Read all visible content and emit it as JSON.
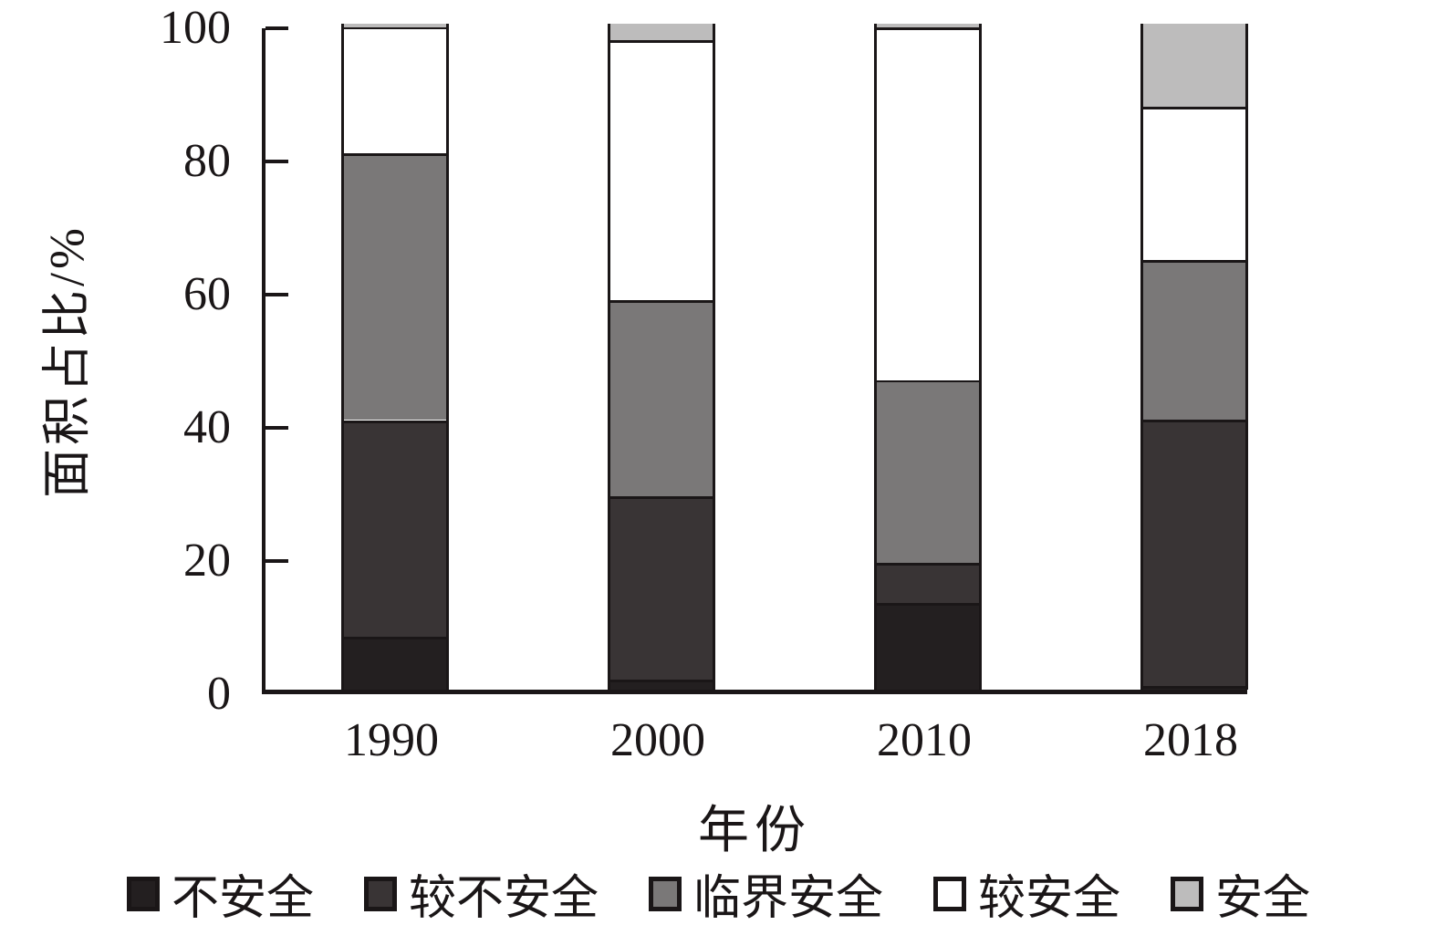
{
  "figure": {
    "background": "#ffffff",
    "outline_color": "#1a1617"
  },
  "chart_data": {
    "type": "bar",
    "subtype": "stacked-vertical",
    "title": "",
    "xlabel": "年份",
    "ylabel": "面积占比/%",
    "categories": [
      "1990",
      "2000",
      "2010",
      "2018"
    ],
    "ylim": [
      0,
      100
    ],
    "yticks": [
      0,
      20,
      40,
      60,
      80,
      100
    ],
    "grid": false,
    "legend_position": "bottom",
    "tick_direction": "in",
    "series": [
      {
        "name": "不安全",
        "color": "#231f20",
        "values": [
          8,
          1.5,
          13,
          0.5
        ]
      },
      {
        "name": "较不安全",
        "color": "#393435",
        "values": [
          32.5,
          27.5,
          6,
          40
        ]
      },
      {
        "name": "临界安全",
        "color": "#7a7878",
        "values": [
          40,
          29.5,
          27.5,
          24
        ]
      },
      {
        "name": "较安全",
        "color": "#ffffff",
        "values": [
          19,
          39,
          53,
          23
        ]
      },
      {
        "name": "安全",
        "color": "#bdbcbc",
        "values": [
          0.5,
          2.5,
          0.5,
          12.5
        ]
      }
    ]
  }
}
